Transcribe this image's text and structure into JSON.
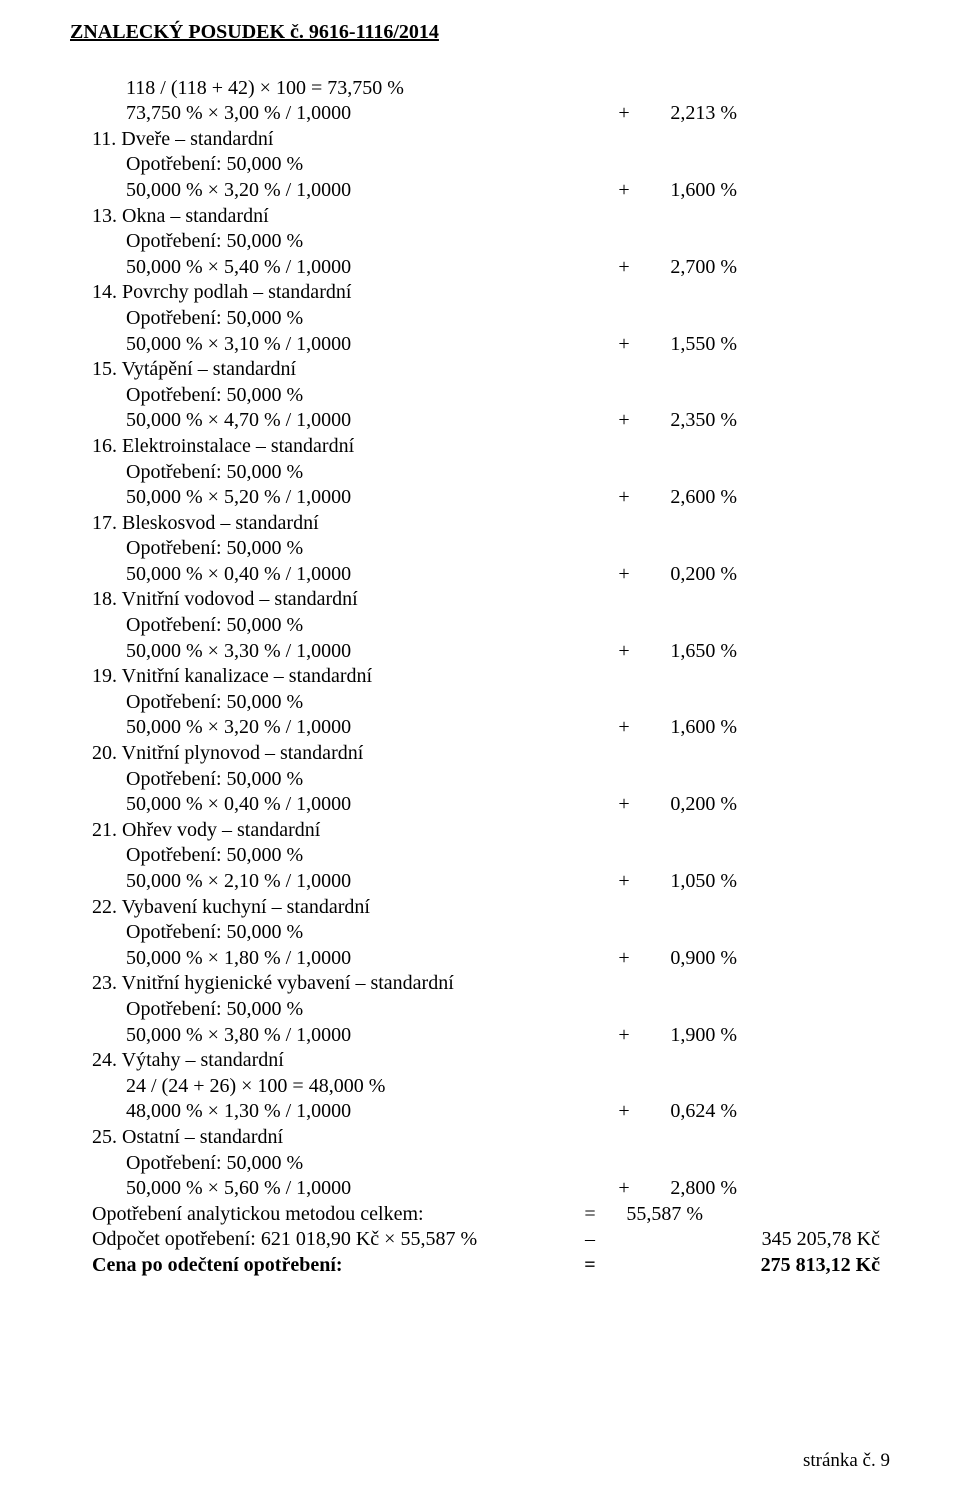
{
  "header": "ZNALECKÝ   POSUDEK č.  9616-1116/2014",
  "intro": {
    "calc": "118 / (118 + 42) × 100 = 73,750 %",
    "formula": "73,750 % × 3,00 % / 1,0000",
    "sign": "+",
    "value": "2,213 %"
  },
  "items": [
    {
      "num": "11.",
      "title": "Dveře – standardní",
      "wear": "Opotřebení: 50,000 %",
      "formula": "50,000 % × 3,20 % / 1,0000",
      "sign": "+",
      "value": "1,600 %"
    },
    {
      "num": "13.",
      "title": "Okna – standardní",
      "wear": "Opotřebení: 50,000 %",
      "formula": "50,000 % × 5,40 % / 1,0000",
      "sign": "+",
      "value": "2,700 %"
    },
    {
      "num": "14.",
      "title": "Povrchy podlah – standardní",
      "wear": "Opotřebení: 50,000 %",
      "formula": "50,000 % × 3,10 % / 1,0000",
      "sign": "+",
      "value": "1,550 %"
    },
    {
      "num": "15.",
      "title": "Vytápění – standardní",
      "wear": "Opotřebení: 50,000 %",
      "formula": "50,000 % × 4,70 % / 1,0000",
      "sign": "+",
      "value": "2,350 %"
    },
    {
      "num": "16.",
      "title": "Elektroinstalace – standardní",
      "wear": "Opotřebení: 50,000 %",
      "formula": "50,000 % × 5,20 % / 1,0000",
      "sign": "+",
      "value": "2,600 %"
    },
    {
      "num": "17.",
      "title": "Bleskosvod – standardní",
      "wear": "Opotřebení: 50,000 %",
      "formula": "50,000 % × 0,40 % / 1,0000",
      "sign": "+",
      "value": "0,200 %"
    },
    {
      "num": "18.",
      "title": "Vnitřní vodovod – standardní",
      "wear": "Opotřebení: 50,000 %",
      "formula": "50,000 % × 3,30 % / 1,0000",
      "sign": "+",
      "value": "1,650 %"
    },
    {
      "num": "19.",
      "title": "Vnitřní kanalizace – standardní",
      "wear": "Opotřebení: 50,000 %",
      "formula": "50,000 % × 3,20 % / 1,0000",
      "sign": "+",
      "value": "1,600 %"
    },
    {
      "num": "20.",
      "title": "Vnitřní plynovod – standardní",
      "wear": "Opotřebení: 50,000 %",
      "formula": "50,000 % × 0,40 % / 1,0000",
      "sign": "+",
      "value": "0,200 %"
    },
    {
      "num": "21.",
      "title": "Ohřev vody – standardní",
      "wear": "Opotřebení: 50,000 %",
      "formula": "50,000 % × 2,10 % / 1,0000",
      "sign": "+",
      "value": "1,050 %"
    },
    {
      "num": "22.",
      "title": "Vybavení kuchyní – standardní",
      "wear": "Opotřebení: 50,000 %",
      "formula": "50,000 % × 1,80 % / 1,0000",
      "sign": "+",
      "value": "0,900 %"
    },
    {
      "num": "23.",
      "title": "Vnitřní hygienické vybavení – standardní",
      "wear": "Opotřebení: 50,000 %",
      "formula": "50,000 % × 3,80 % / 1,0000",
      "sign": "+",
      "value": "1,900 %"
    },
    {
      "num": "24.",
      "title": "Výtahy – standardní",
      "wear": "24 / (24 + 26) × 100 = 48,000 %",
      "formula": "48,000 % × 1,30 % / 1,0000",
      "sign": "+",
      "value": "0,624 %"
    },
    {
      "num": "25.",
      "title": "Ostatní – standardní",
      "wear": "Opotřebení: 50,000 %",
      "formula": "50,000 % × 5,60 % / 1,0000",
      "sign": "+",
      "value": "2,800 %"
    }
  ],
  "summary": {
    "total_wear_label": "Opotřebení analytickou metodou celkem:",
    "total_wear_sign": "=",
    "total_wear_value": "55,587 %",
    "deduction_label": "Odpočet opotřebení: 621 018,90 Kč × 55,587 %",
    "deduction_sign": "–",
    "deduction_value": "345 205,78 Kč",
    "final_label": "Cena po odečtení opotřebení:",
    "final_sign": "=",
    "final_value": "275 813,12 Kč"
  },
  "footer": "stránka č.  9"
}
